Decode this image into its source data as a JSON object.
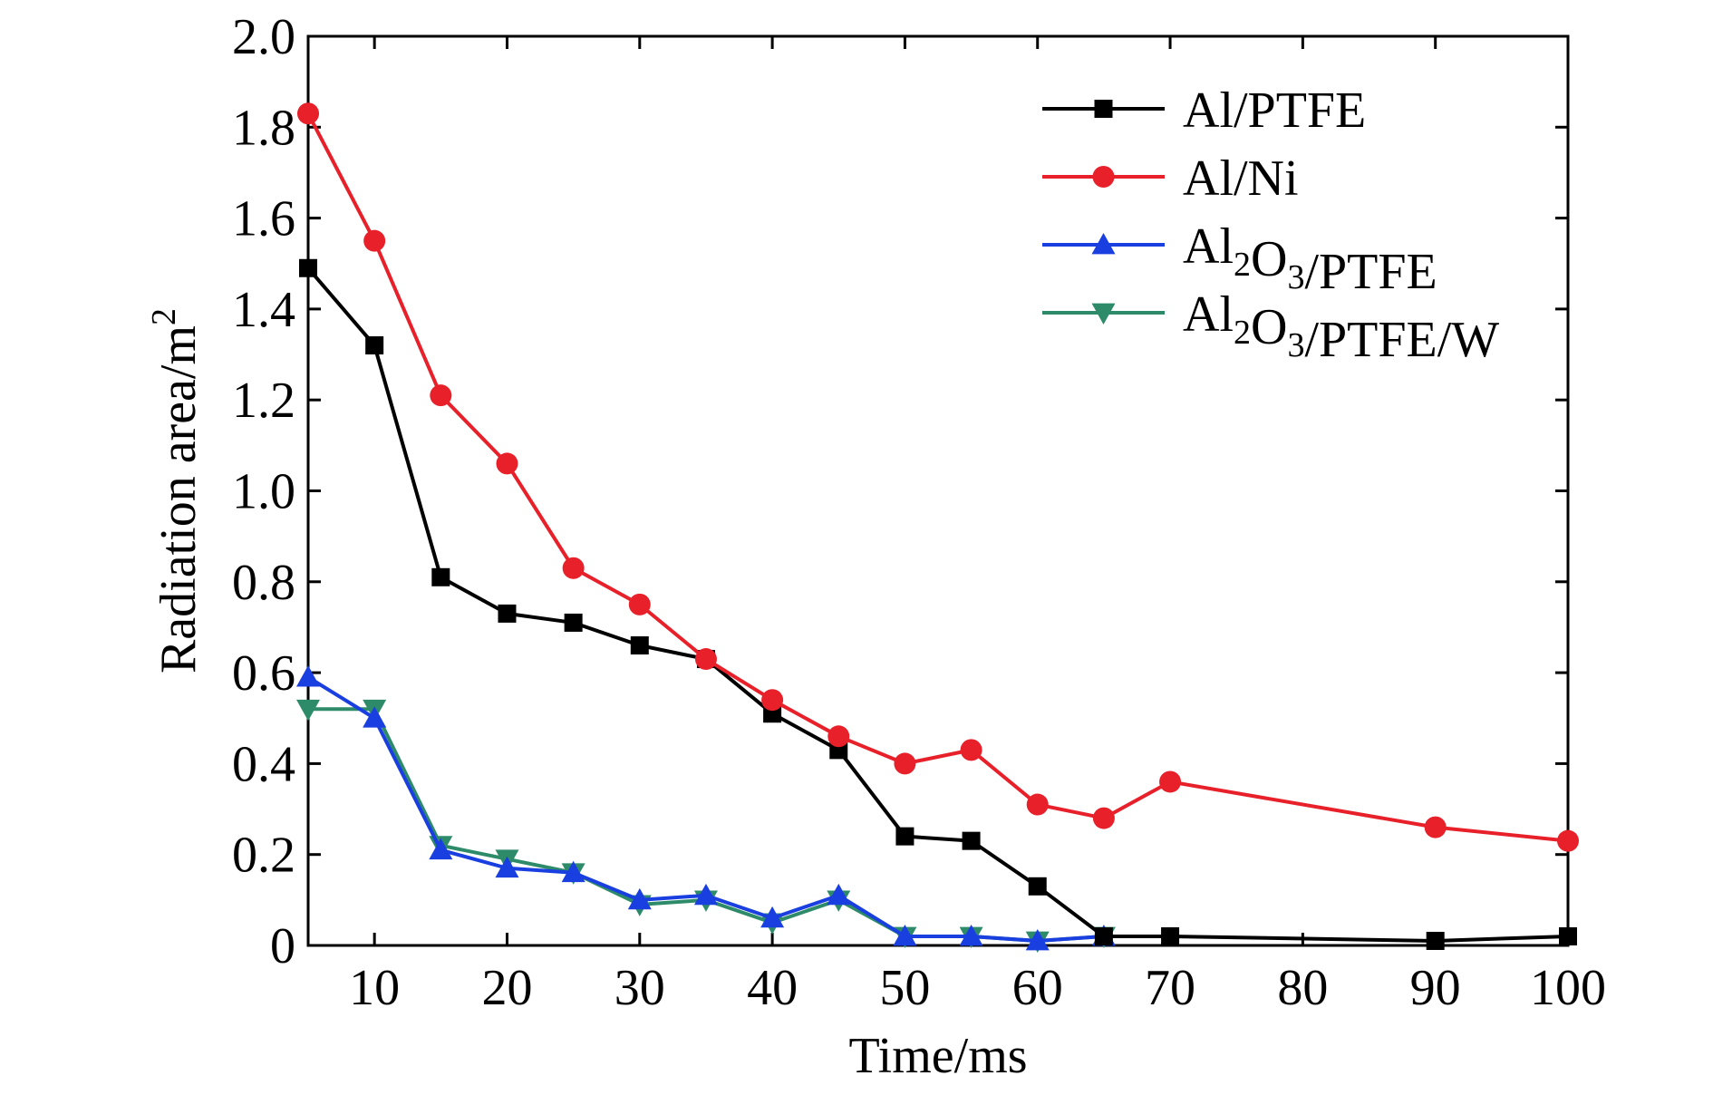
{
  "chart_data": {
    "type": "line",
    "xlabel": "Time/ms",
    "ylabel": "Radiation area/m",
    "ylabel_superscript": "2",
    "xlim": [
      5,
      100
    ],
    "ylim": [
      0,
      2.0
    ],
    "x_ticks": [
      10,
      20,
      30,
      40,
      50,
      60,
      70,
      80,
      90,
      100
    ],
    "y_ticks": [
      0,
      0.2,
      0.4,
      0.6,
      0.8,
      1.0,
      1.2,
      1.4,
      1.6,
      1.8,
      2.0
    ],
    "y_tick_labels": [
      "0",
      "0.2",
      "0.4",
      "0.6",
      "0.8",
      "1.0",
      "1.2",
      "1.4",
      "1.6",
      "1.8",
      "2.0"
    ],
    "x_tick_labels": [
      "10",
      "20",
      "30",
      "40",
      "50",
      "60",
      "70",
      "80",
      "90",
      "100"
    ],
    "legend_position": "top-right",
    "grid": false,
    "series": [
      {
        "name": "Al/PTFE",
        "legend_parts": [
          {
            "t": "Al/PTFE"
          }
        ],
        "color": "#000000",
        "marker": "square",
        "points": [
          [
            5,
            1.49
          ],
          [
            10,
            1.32
          ],
          [
            15,
            0.81
          ],
          [
            20,
            0.73
          ],
          [
            25,
            0.71
          ],
          [
            30,
            0.66
          ],
          [
            35,
            0.63
          ],
          [
            40,
            0.51
          ],
          [
            45,
            0.43
          ],
          [
            50,
            0.24
          ],
          [
            55,
            0.23
          ],
          [
            60,
            0.13
          ],
          [
            65,
            0.02
          ],
          [
            70,
            0.02
          ],
          [
            90,
            0.01
          ],
          [
            100,
            0.02
          ]
        ]
      },
      {
        "name": "Al/Ni",
        "legend_parts": [
          {
            "t": "Al/Ni"
          }
        ],
        "color": "#e8202a",
        "marker": "circle",
        "points": [
          [
            5,
            1.83
          ],
          [
            10,
            1.55
          ],
          [
            15,
            1.21
          ],
          [
            20,
            1.06
          ],
          [
            25,
            0.83
          ],
          [
            30,
            0.75
          ],
          [
            35,
            0.63
          ],
          [
            40,
            0.54
          ],
          [
            45,
            0.46
          ],
          [
            50,
            0.4
          ],
          [
            55,
            0.43
          ],
          [
            60,
            0.31
          ],
          [
            65,
            0.28
          ],
          [
            70,
            0.36
          ],
          [
            90,
            0.26
          ],
          [
            100,
            0.23
          ]
        ]
      },
      {
        "name": "Al2O3/PTFE",
        "legend_parts": [
          {
            "t": "Al"
          },
          {
            "t": "2",
            "sub": true
          },
          {
            "t": "O"
          },
          {
            "t": "3",
            "sub": true
          },
          {
            "t": "/PTFE"
          }
        ],
        "color": "#1a3fe0",
        "marker": "triangle-up",
        "points": [
          [
            5,
            0.59
          ],
          [
            10,
            0.5
          ],
          [
            15,
            0.21
          ],
          [
            20,
            0.17
          ],
          [
            25,
            0.16
          ],
          [
            30,
            0.1
          ],
          [
            35,
            0.11
          ],
          [
            40,
            0.06
          ],
          [
            45,
            0.11
          ],
          [
            50,
            0.02
          ],
          [
            55,
            0.02
          ],
          [
            60,
            0.01
          ],
          [
            65,
            0.02
          ]
        ]
      },
      {
        "name": "Al2O3/PTFE/W",
        "legend_parts": [
          {
            "t": "Al"
          },
          {
            "t": "2",
            "sub": true
          },
          {
            "t": "O"
          },
          {
            "t": "3",
            "sub": true
          },
          {
            "t": "/PTFE/W"
          }
        ],
        "color": "#2e8b6a",
        "marker": "triangle-down",
        "points": [
          [
            5,
            0.52
          ],
          [
            10,
            0.52
          ],
          [
            15,
            0.22
          ],
          [
            20,
            0.19
          ],
          [
            25,
            0.16
          ],
          [
            30,
            0.09
          ],
          [
            35,
            0.1
          ],
          [
            40,
            0.05
          ],
          [
            45,
            0.1
          ],
          [
            50,
            0.02
          ],
          [
            55,
            0.02
          ],
          [
            60,
            0.01
          ],
          [
            65,
            0.02
          ]
        ]
      }
    ]
  }
}
